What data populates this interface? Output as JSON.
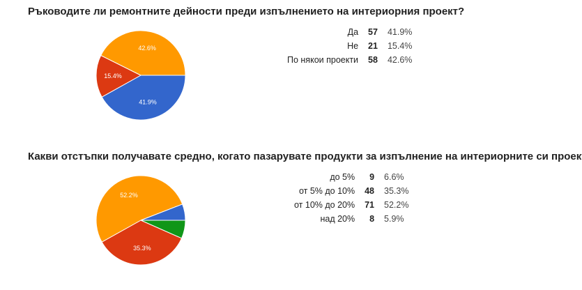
{
  "questions": [
    {
      "title": "Ръководите ли ремонтните дейности преди изпълнението на интериорния проект?",
      "rows": [
        {
          "label": "Да",
          "count": "57",
          "percent": "41.9%"
        },
        {
          "label": "Не",
          "count": "21",
          "percent": "15.4%"
        },
        {
          "label": "По някои проекти",
          "count": "58",
          "percent": "42.6%"
        }
      ]
    },
    {
      "title": "Какви отстъпки получавате средно, когато пазарувате продукти за изпълнение на интериорните си проекти?",
      "rows": [
        {
          "label": "до 5%",
          "count": "9",
          "percent": "6.6%"
        },
        {
          "label": "от 5% до 10%",
          "count": "48",
          "percent": "35.3%"
        },
        {
          "label": "от 10% до 20%",
          "count": "71",
          "percent": "52.2%"
        },
        {
          "label": "над 20%",
          "count": "8",
          "percent": "5.9%"
        }
      ]
    }
  ],
  "chart_data": [
    {
      "type": "pie",
      "title": "Ръководите ли ремонтните дейности преди изпълнението на интериорния проект?",
      "categories": [
        "Да",
        "Не",
        "По някои проекти"
      ],
      "values": [
        57,
        21,
        58
      ],
      "percent_labels": [
        "41.9%",
        "15.4%",
        "42.6%"
      ],
      "colors": [
        "#3366cc",
        "#dc3912",
        "#ff9900"
      ]
    },
    {
      "type": "pie",
      "title": "Какви отстъпки получавате средно, когато пазарувате продукти за изпълнение на интериорните си проекти?",
      "categories": [
        "до 5%",
        "от 5% до 10%",
        "от 10% до 20%",
        "над 20%"
      ],
      "values": [
        9,
        48,
        71,
        8
      ],
      "percent_labels": [
        "",
        "35.3%",
        "52.2%",
        ""
      ],
      "colors": [
        "#109618",
        "#dc3912",
        "#ff9900",
        "#3366cc"
      ]
    }
  ]
}
